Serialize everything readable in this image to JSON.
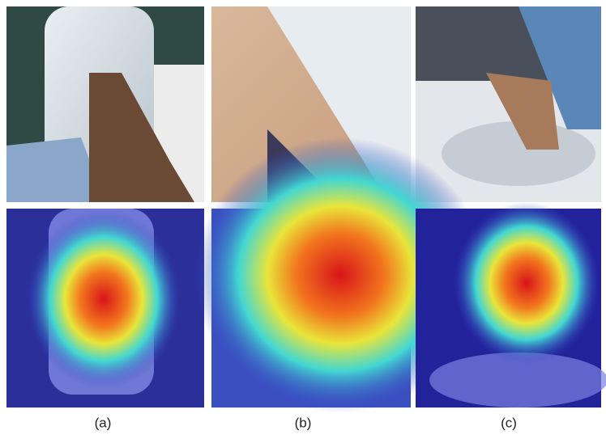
{
  "figure": {
    "panels": [
      {
        "label": "(a)"
      },
      {
        "label": "(b)"
      },
      {
        "label": "(c)"
      }
    ]
  }
}
